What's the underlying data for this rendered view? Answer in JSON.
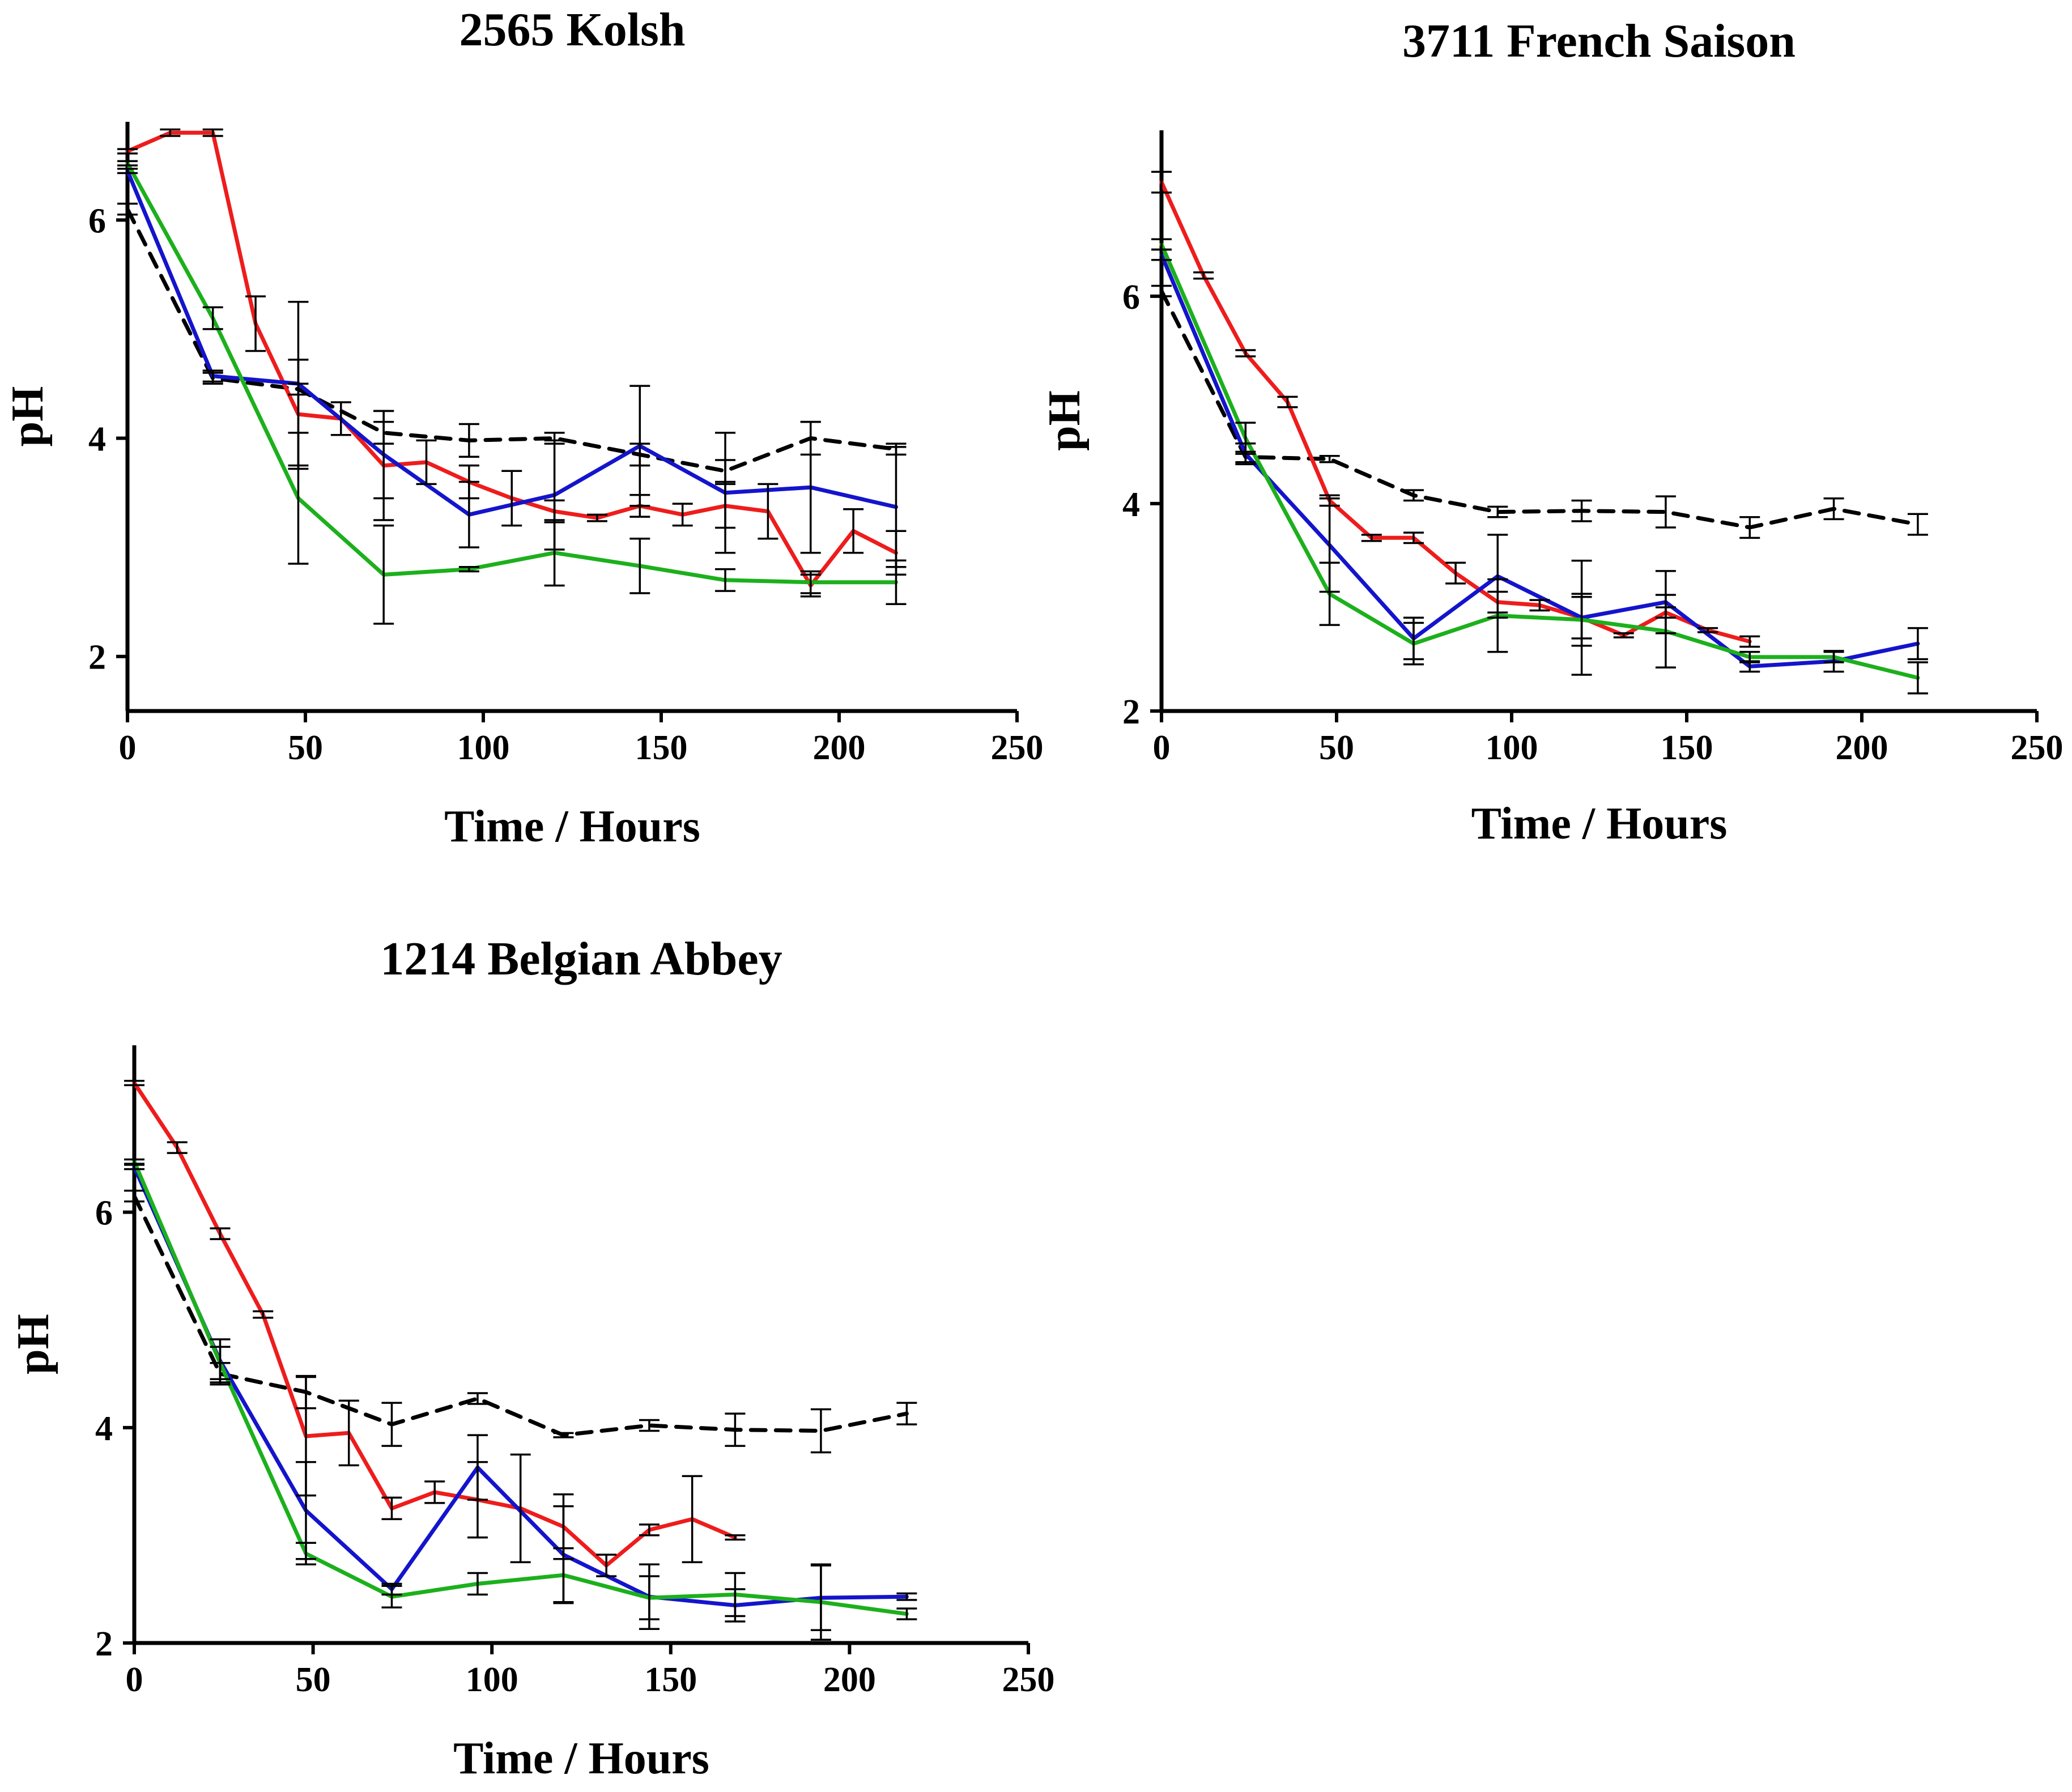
{
  "chart_data": [
    {
      "type": "line",
      "title": "2565 Kolsh",
      "xlabel": "Time / Hours",
      "ylabel": "pH",
      "xlim": [
        0,
        250
      ],
      "ylim": [
        1.5,
        6.9
      ],
      "xticks": [
        0,
        50,
        100,
        150,
        200,
        250
      ],
      "yticks": [
        2,
        4,
        6
      ],
      "series": [
        {
          "name": "dashed",
          "color": "#000000",
          "dash": true,
          "x": [
            0,
            24,
            48,
            72,
            96,
            120,
            144,
            168,
            192,
            216
          ],
          "y": [
            6.1,
            4.55,
            4.45,
            4.05,
            3.98,
            4.0,
            3.85,
            3.7,
            4.0,
            3.9
          ],
          "err": [
            0.05,
            0.05,
            0.05,
            0.1,
            0.15,
            0.05,
            0.1,
            0.1,
            0.15,
            0.05
          ]
        },
        {
          "name": "red",
          "color": "#ee1c1c",
          "x": [
            0,
            12,
            24,
            36,
            48,
            60,
            72,
            84,
            96,
            108,
            120,
            132,
            144,
            156,
            168,
            180,
            192,
            204,
            216
          ],
          "y": [
            6.63,
            6.8,
            6.8,
            5.05,
            4.22,
            4.18,
            3.75,
            3.78,
            3.6,
            3.45,
            3.33,
            3.27,
            3.38,
            3.3,
            3.38,
            3.33,
            2.65,
            3.15,
            2.95
          ],
          "err": [
            0.02,
            0.03,
            0.03,
            0.25,
            0.5,
            0.15,
            0.5,
            0.2,
            0.15,
            0.25,
            0.1,
            0.03,
            0.1,
            0.1,
            0.2,
            0.25,
            0.1,
            0.2,
            0.2
          ]
        },
        {
          "name": "blue",
          "color": "#1414cc",
          "x": [
            0,
            24,
            48,
            72,
            96,
            120,
            144,
            168,
            192,
            216
          ],
          "y": [
            6.45,
            4.57,
            4.5,
            3.85,
            3.3,
            3.48,
            3.93,
            3.5,
            3.55,
            3.37
          ],
          "err": [
            0.02,
            0.05,
            0.75,
            0.4,
            0.3,
            0.5,
            0.55,
            0.55,
            0.6,
            0.55
          ]
        },
        {
          "name": "green",
          "color": "#1cb01c",
          "x": [
            0,
            24,
            48,
            72,
            96,
            120,
            144,
            168,
            192,
            216
          ],
          "y": [
            6.52,
            5.1,
            3.45,
            2.75,
            2.8,
            2.95,
            2.83,
            2.7,
            2.68,
            2.68
          ],
          "err": [
            0.02,
            0.1,
            0.6,
            0.45,
            0.02,
            0.3,
            0.25,
            0.1,
            0.1,
            0.2
          ]
        }
      ]
    },
    {
      "type": "line",
      "title": "3711 French Saison",
      "xlabel": "Time / Hours",
      "ylabel": "pH",
      "xlim": [
        0,
        250
      ],
      "ylim": [
        2,
        7.6
      ],
      "xticks": [
        0,
        50,
        100,
        150,
        200,
        250
      ],
      "yticks": [
        2,
        4,
        6
      ],
      "series": [
        {
          "name": "dashed",
          "color": "#000000",
          "dash": true,
          "x": [
            0,
            24,
            48,
            72,
            96,
            120,
            144,
            168,
            192,
            216
          ],
          "y": [
            6.05,
            4.45,
            4.43,
            4.08,
            3.92,
            3.93,
            3.92,
            3.77,
            3.95,
            3.8
          ],
          "err": [
            0.05,
            0.05,
            0.03,
            0.05,
            0.05,
            0.1,
            0.15,
            0.1,
            0.1,
            0.1
          ]
        },
        {
          "name": "red",
          "color": "#ee1c1c",
          "x": [
            0,
            12,
            24,
            36,
            48,
            60,
            72,
            84,
            96,
            108,
            120,
            132,
            144,
            156,
            168
          ],
          "y": [
            7.1,
            6.2,
            5.45,
            4.98,
            4.03,
            3.67,
            3.67,
            3.33,
            3.05,
            3.02,
            2.9,
            2.73,
            2.95,
            2.78,
            2.67
          ],
          "err": [
            0.1,
            0.03,
            0.03,
            0.05,
            0.05,
            0.03,
            0.05,
            0.1,
            0.1,
            0.05,
            0.2,
            0.02,
            0.05,
            0.02,
            0.05
          ]
        },
        {
          "name": "blue",
          "color": "#1414cc",
          "x": [
            0,
            24,
            48,
            72,
            96,
            120,
            144,
            168,
            192,
            216
          ],
          "y": [
            6.4,
            4.48,
            3.6,
            2.7,
            3.3,
            2.9,
            3.05,
            2.43,
            2.48,
            2.65
          ],
          "err": [
            0.05,
            0.1,
            0.45,
            0.2,
            0.4,
            0.55,
            0.3,
            0.05,
            0.1,
            0.15
          ]
        },
        {
          "name": "green",
          "color": "#1cb01c",
          "x": [
            0,
            24,
            48,
            72,
            96,
            120,
            144,
            168,
            192,
            216
          ],
          "y": [
            6.5,
            4.63,
            3.13,
            2.65,
            2.92,
            2.88,
            2.77,
            2.52,
            2.52,
            2.32
          ],
          "err": [
            0.05,
            0.15,
            0.3,
            0.2,
            0.35,
            0.25,
            0.35,
            0.05,
            0.05,
            0.15
          ]
        }
      ]
    },
    {
      "type": "line",
      "title": "1214 Belgian Abbey",
      "xlabel": "Time / Hours",
      "ylabel": "pH",
      "xlim": [
        0,
        250
      ],
      "ylim": [
        2,
        7.55
      ],
      "xticks": [
        0,
        50,
        100,
        150,
        200,
        250
      ],
      "yticks": [
        2,
        4,
        6
      ],
      "series": [
        {
          "name": "dashed",
          "color": "#000000",
          "dash": true,
          "x": [
            0,
            24,
            48,
            72,
            96,
            120,
            144,
            168,
            192,
            216
          ],
          "y": [
            6.15,
            4.5,
            4.33,
            4.03,
            4.27,
            3.93,
            4.02,
            3.98,
            3.97,
            4.13
          ],
          "err": [
            0.05,
            0.1,
            0.15,
            0.2,
            0.05,
            0.02,
            0.05,
            0.15,
            0.2,
            0.1
          ]
        },
        {
          "name": "red",
          "color": "#ee1c1c",
          "x": [
            0,
            12,
            24,
            36,
            48,
            60,
            72,
            84,
            96,
            108,
            120,
            132,
            144,
            156,
            168
          ],
          "y": [
            7.2,
            6.6,
            5.8,
            5.05,
            3.92,
            3.95,
            3.25,
            3.4,
            3.33,
            3.25,
            3.08,
            2.72,
            3.05,
            3.15,
            2.98
          ],
          "err": [
            0.02,
            0.05,
            0.05,
            0.03,
            0.55,
            0.3,
            0.1,
            0.1,
            0.35,
            0.5,
            0.3,
            0.1,
            0.05,
            0.4,
            0.02
          ]
        },
        {
          "name": "blue",
          "color": "#1414cc",
          "x": [
            0,
            24,
            48,
            72,
            96,
            120,
            144,
            168,
            192,
            216
          ],
          "y": [
            6.42,
            4.62,
            3.23,
            2.5,
            3.63,
            2.82,
            2.43,
            2.35,
            2.42,
            2.43
          ],
          "err": [
            0.02,
            0.2,
            0.45,
            0.05,
            0.3,
            0.45,
            0.3,
            0.15,
            0.3,
            0.03
          ]
        },
        {
          "name": "green",
          "color": "#1cb01c",
          "x": [
            0,
            24,
            48,
            72,
            96,
            120,
            144,
            168,
            192,
            216
          ],
          "y": [
            6.47,
            4.6,
            2.83,
            2.43,
            2.55,
            2.63,
            2.42,
            2.45,
            2.38,
            2.27
          ],
          "err": [
            0.02,
            0.15,
            0.1,
            0.1,
            0.1,
            0.25,
            0.2,
            0.2,
            0.35,
            0.05
          ]
        }
      ]
    }
  ]
}
